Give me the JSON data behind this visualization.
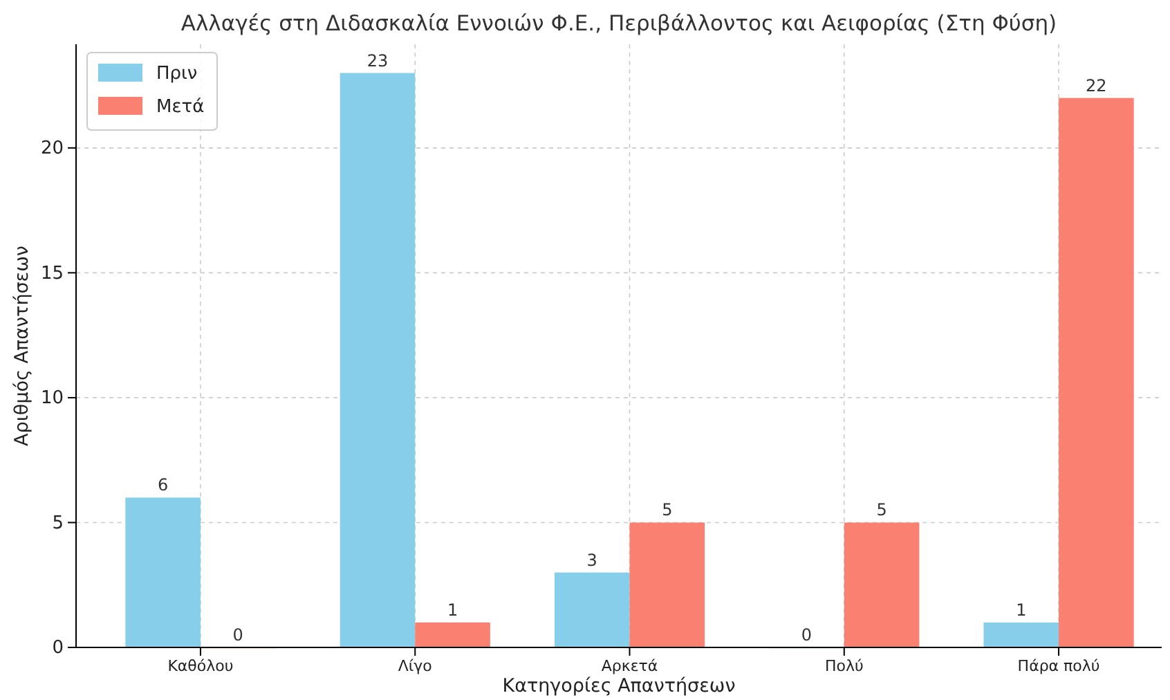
{
  "chart_data": {
    "type": "bar",
    "title": "Αλλαγές στη Διδασκαλία Εννοιών Φ.Ε., Περιβάλλοντος και Αειφορίας (Στη Φύση)",
    "xlabel": "Κατηγορίες Απαντήσεων",
    "ylabel": "Αριθμός Απαντήσεων",
    "categories": [
      "Καθόλου",
      "Λίγο",
      "Αρκετά",
      "Πολύ",
      "Πάρα πολύ"
    ],
    "series": [
      {
        "name": "Πριν",
        "color": "#87ceeb",
        "values": [
          6,
          23,
          3,
          0,
          1
        ]
      },
      {
        "name": "Μετά",
        "color": "#fa8072",
        "values": [
          0,
          1,
          5,
          5,
          22
        ]
      }
    ],
    "ylim": [
      0,
      24.15
    ],
    "yticks": [
      0,
      5,
      10,
      15,
      20
    ],
    "grid": true,
    "legend": "top left",
    "data_labels": true
  }
}
